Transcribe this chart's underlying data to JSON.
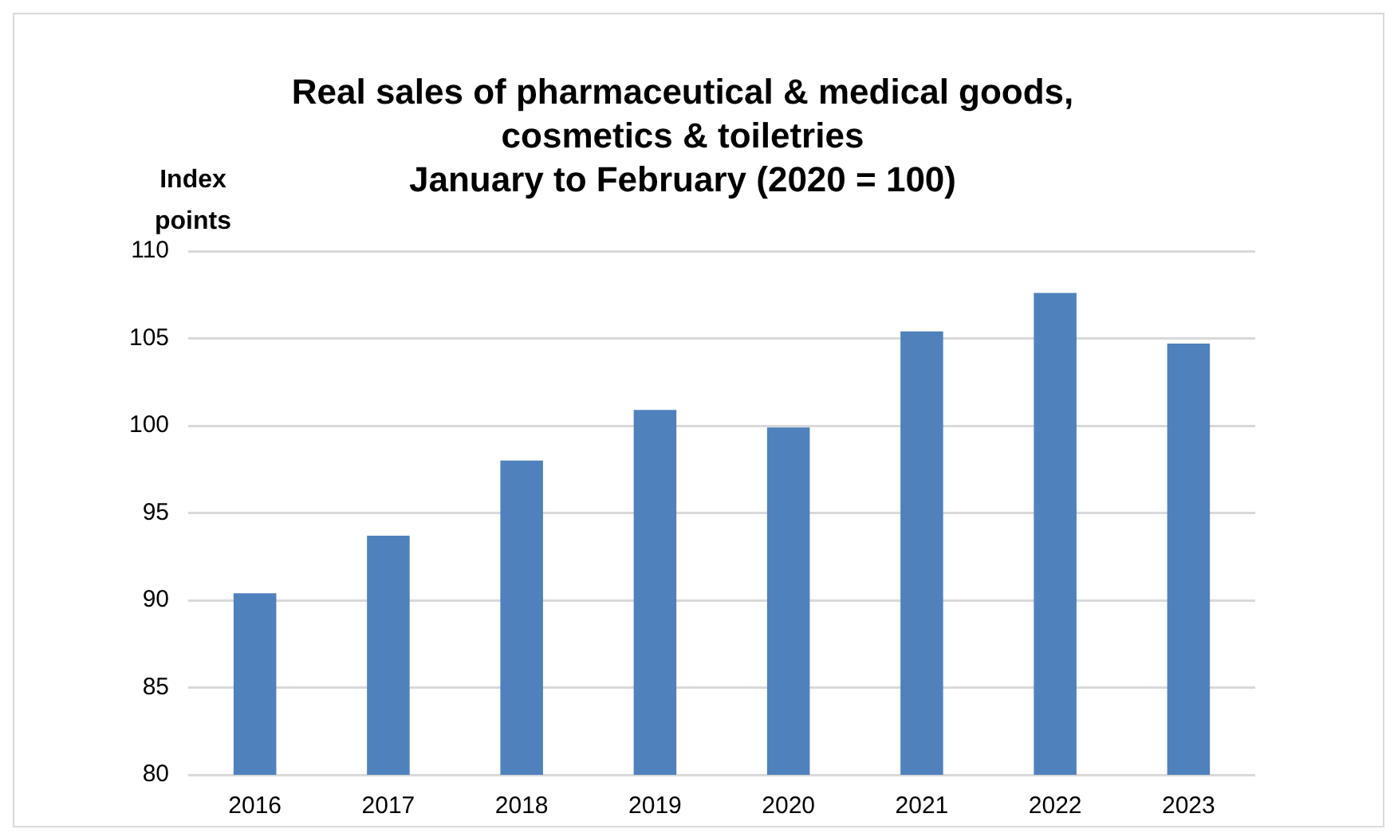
{
  "chart_data": {
    "type": "bar",
    "title": "Real sales of pharmaceutical & medical goods,\ncosmetics & toiletries\nJanuary to February (2020 = 100)",
    "ylabel": "Index\npoints",
    "categories": [
      "2016",
      "2017",
      "2018",
      "2019",
      "2020",
      "2021",
      "2022",
      "2023"
    ],
    "values": [
      90.4,
      93.7,
      98.0,
      100.9,
      99.9,
      105.4,
      107.6,
      104.7
    ],
    "color": "#4f81bd",
    "ylim": [
      80,
      110
    ],
    "yticks": [
      80,
      85,
      90,
      95,
      100,
      105,
      110
    ],
    "grid": "y",
    "legend": false
  }
}
